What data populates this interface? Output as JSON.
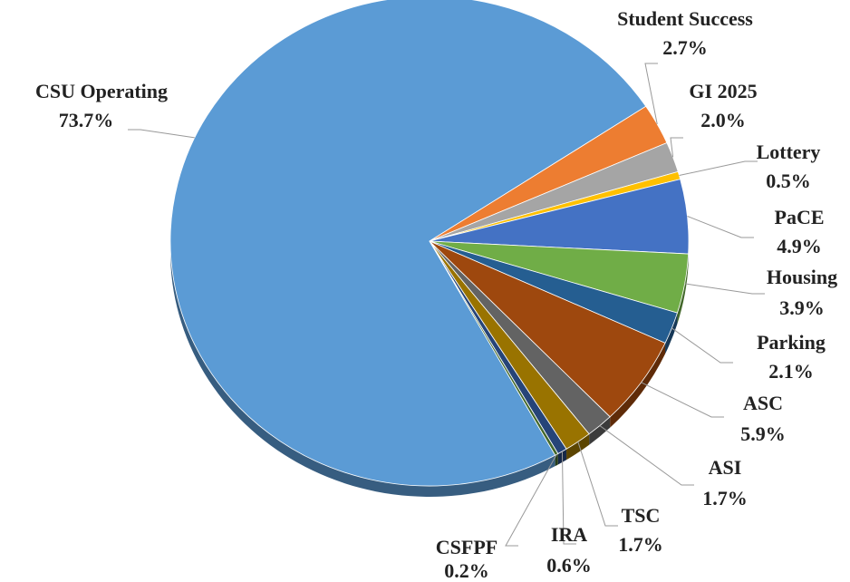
{
  "chart_data": {
    "type": "pie",
    "categories": [
      "CSU Operating",
      "Student Success",
      "GI 2025",
      "Lottery",
      "PaCE",
      "Housing",
      "Parking",
      "ASC",
      "ASI",
      "TSC",
      "IRA",
      "CSFPF"
    ],
    "values": [
      73.7,
      2.7,
      2.0,
      0.5,
      4.9,
      3.9,
      2.1,
      5.9,
      1.7,
      1.7,
      0.6,
      0.2
    ],
    "value_labels": [
      "73.7%",
      "2.7%",
      "2.0%",
      "0.5%",
      "4.9%",
      "3.9%",
      "2.1%",
      "5.9%",
      "1.7%",
      "1.7%",
      "0.6%",
      "0.2%"
    ],
    "colors": [
      "#5b9bd5",
      "#ed7d31",
      "#a5a5a5",
      "#ffc000",
      "#4472c4",
      "#70ad47",
      "#255e91",
      "#9e480e",
      "#636363",
      "#997300",
      "#264478",
      "#43682b"
    ]
  }
}
